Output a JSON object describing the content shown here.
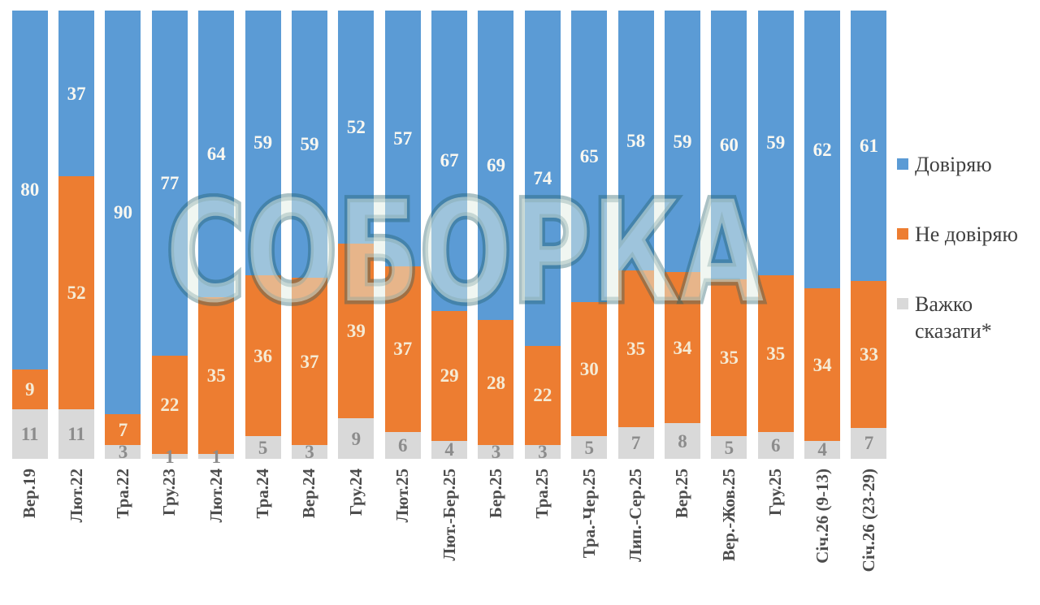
{
  "watermark": "СОБОРКА",
  "legend": {
    "items": [
      {
        "label": "Довіряю",
        "color": "#5B9BD5"
      },
      {
        "label": "Не довіряю",
        "color": "#ED7D31"
      },
      {
        "label": "Важко сказати*",
        "color": "#D9D9D9"
      }
    ]
  },
  "chart_data": {
    "type": "bar",
    "subtype": "stacked-100-percent",
    "stacking": "top-to-bottom",
    "grid": false,
    "legend_position": "right",
    "ylim": [
      0,
      100
    ],
    "categories": [
      "Вер.19",
      "Лют.22",
      "Тра.22",
      "Гру.23",
      "Лют.24",
      "Тра.24",
      "Вер.24",
      "Гру.24",
      "Лют.25",
      "Лют.-Бер.25",
      "Бер.25",
      "Тра.25",
      "Тра.-Чер.25",
      "Лип.-Сер.25",
      "Вер.25",
      "Вер.-Жов.25",
      "Гру.25",
      "Січ.26 (9-13)",
      "Січ.26 (23-29)"
    ],
    "series": [
      {
        "key": "trust",
        "name": "Довіряю",
        "color": "#5B9BD5",
        "label_color": "#FAF8F1",
        "values": [
          80,
          37,
          90,
          77,
          64,
          59,
          59,
          52,
          57,
          67,
          69,
          74,
          65,
          58,
          59,
          60,
          59,
          62,
          61
        ]
      },
      {
        "key": "distrust",
        "name": "Не довіряю",
        "color": "#ED7D31",
        "label_color": "#F5EBD5",
        "values": [
          9,
          52,
          7,
          22,
          35,
          36,
          37,
          39,
          37,
          29,
          28,
          22,
          30,
          35,
          34,
          35,
          35,
          34,
          33
        ]
      },
      {
        "key": "hard-to-say",
        "name": "Важко сказати*",
        "color": "#D9D9D9",
        "label_color": "#8C8C8C",
        "values": [
          11,
          11,
          3,
          1,
          1,
          5,
          3,
          9,
          6,
          4,
          3,
          3,
          5,
          7,
          8,
          5,
          6,
          4,
          7
        ]
      }
    ]
  }
}
